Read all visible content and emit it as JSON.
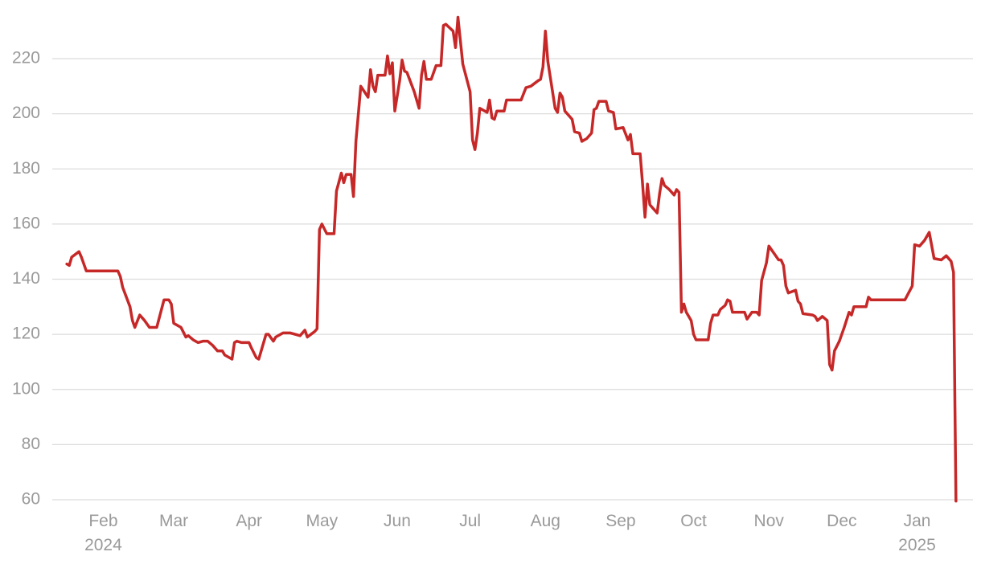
{
  "chart_data": {
    "type": "line",
    "color": "#c62828",
    "grid": true,
    "x": [
      16,
      17,
      18,
      21,
      22,
      24,
      37,
      38,
      39,
      42,
      43,
      44,
      46,
      48,
      50,
      53,
      56,
      58,
      59,
      60,
      63,
      65,
      66,
      68,
      70,
      72,
      74,
      76,
      78,
      80,
      81,
      84,
      85,
      86,
      88,
      91,
      92,
      94,
      95,
      98,
      99,
      101,
      102,
      105,
      108,
      112,
      114,
      115,
      118,
      119,
      120,
      121,
      123,
      126,
      127,
      129,
      130,
      131,
      133,
      134,
      135,
      137,
      140,
      141,
      142,
      143,
      144,
      147,
      148,
      149,
      150,
      151,
      153,
      154,
      155,
      156,
      159,
      161,
      162,
      163,
      164,
      166,
      168,
      170,
      171,
      172,
      175,
      176,
      177,
      179,
      182,
      183,
      184,
      185,
      186,
      189,
      190,
      191,
      192,
      193,
      196,
      197,
      203,
      205,
      207,
      210,
      211,
      212,
      213,
      214,
      217,
      218,
      219,
      220,
      221,
      224,
      225,
      227,
      228,
      230,
      232,
      233,
      234,
      235,
      238,
      239,
      241,
      242,
      245,
      247,
      248,
      249,
      252,
      253,
      254,
      255,
      256,
      259,
      260,
      261,
      262,
      264,
      266,
      267,
      268,
      269,
      270,
      271,
      273,
      274,
      275,
      276,
      280,
      281,
      282,
      284,
      285,
      287,
      288,
      289,
      290,
      295,
      296,
      298,
      300,
      301,
      302,
      304,
      305,
      307,
      309,
      310,
      311,
      312,
      313,
      316,
      317,
      318,
      319,
      323,
      324,
      325,
      327,
      329,
      330,
      331,
      332,
      334,
      336,
      338,
      339,
      340,
      345,
      346,
      347,
      361,
      364,
      365,
      367,
      369,
      371,
      373,
      376,
      378,
      380,
      381,
      382
    ],
    "values": [
      145.5,
      145,
      148,
      150,
      148,
      143,
      143,
      141,
      137,
      130,
      125,
      122.5,
      127,
      125,
      122.5,
      122.5,
      132.5,
      132.5,
      131,
      124,
      122.5,
      119,
      119.5,
      118,
      117,
      117.5,
      117.5,
      116,
      114,
      114,
      112.5,
      111,
      117,
      117.5,
      117,
      117,
      115,
      111.5,
      111,
      120,
      120,
      117.5,
      119,
      120.5,
      120.5,
      119.5,
      121.5,
      119,
      121,
      122,
      158,
      160,
      156.5,
      156.5,
      172,
      178.5,
      175,
      178,
      178,
      170,
      190,
      210,
      206,
      216,
      210,
      208,
      214,
      214,
      221,
      214.5,
      218.5,
      201,
      212,
      219.5,
      215.5,
      215,
      208,
      202,
      214,
      219,
      212.5,
      212.5,
      217.5,
      217.5,
      232,
      232.5,
      230,
      224,
      235,
      218,
      208,
      190.5,
      187,
      193,
      202,
      200.5,
      205,
      198.5,
      198,
      201,
      201,
      205,
      205,
      209.5,
      210,
      212,
      212.5,
      217,
      230,
      219,
      202,
      200.5,
      207.5,
      206,
      201,
      198,
      193.5,
      193,
      190,
      191,
      193,
      201.5,
      202,
      204.5,
      204.5,
      201,
      200.5,
      194.5,
      195,
      190.5,
      192.5,
      185.5,
      185.5,
      174.5,
      162.5,
      174.5,
      167,
      164,
      171,
      176.5,
      174,
      172.5,
      170.5,
      172.5,
      171.5,
      128,
      131,
      128,
      125,
      120,
      118,
      118,
      118,
      124,
      127,
      127,
      129,
      130.5,
      132.5,
      132,
      128,
      128,
      125.5,
      128,
      128,
      127,
      139.5,
      146,
      152,
      149.5,
      147,
      147,
      145,
      137.5,
      135,
      136,
      132,
      131,
      127.5,
      127,
      126.5,
      125,
      126.5,
      125,
      109,
      107,
      114,
      117.5,
      122.5,
      128,
      127,
      130,
      130,
      133.5,
      132.5,
      132.5,
      137.5,
      152.5,
      152,
      154,
      157,
      147.5,
      147,
      148.5,
      146.5,
      142.5,
      59.5
    ],
    "xlim": [
      10,
      389
    ],
    "xticks": [
      {
        "value": 31,
        "label": "Feb\n2024"
      },
      {
        "value": 60,
        "label": "Mar"
      },
      {
        "value": 91,
        "label": "Apr"
      },
      {
        "value": 121,
        "label": "May"
      },
      {
        "value": 152,
        "label": "Jun"
      },
      {
        "value": 182,
        "label": "Jul"
      },
      {
        "value": 213,
        "label": "Aug"
      },
      {
        "value": 244,
        "label": "Sep"
      },
      {
        "value": 274,
        "label": "Oct"
      },
      {
        "value": 305,
        "label": "Nov"
      },
      {
        "value": 335,
        "label": "Dec"
      },
      {
        "value": 366,
        "label": "Jan\n2025"
      }
    ],
    "ylim": [
      59,
      236
    ],
    "yticks": [
      60,
      80,
      100,
      120,
      140,
      160,
      180,
      200,
      220
    ]
  }
}
